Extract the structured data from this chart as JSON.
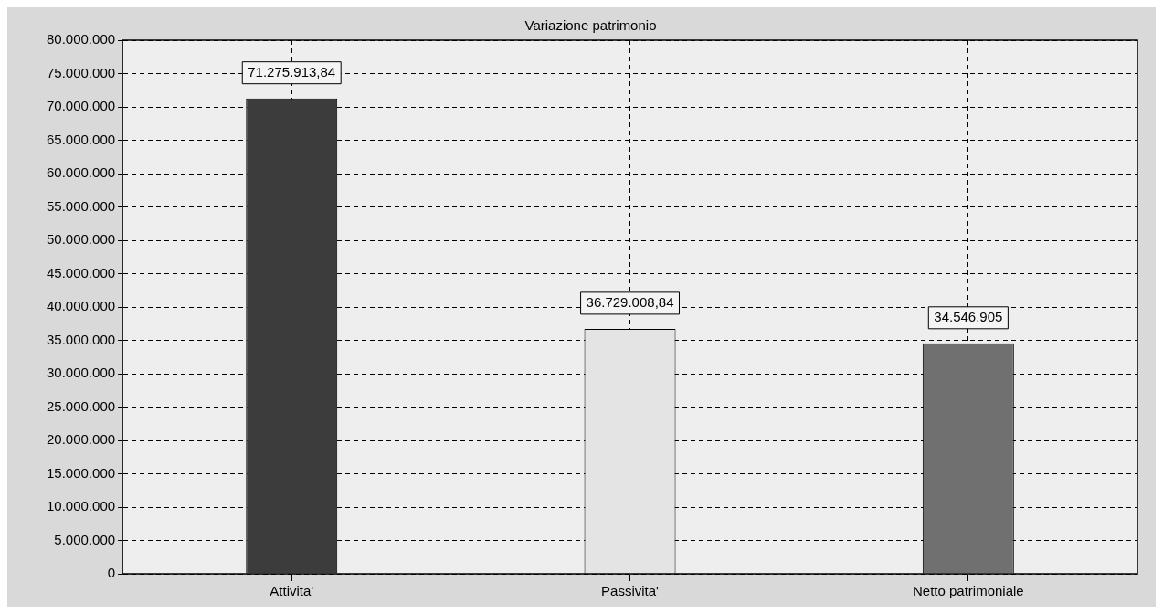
{
  "chart_data": {
    "type": "bar",
    "title": "Variazione patrimonio",
    "categories": [
      "Attivita'",
      "Passivita'",
      "Netto patrimoniale"
    ],
    "values": [
      71275913.84,
      36729008.84,
      34546905
    ],
    "colors": [
      "#3c3c3c",
      "#e4e4e4",
      "#707070"
    ],
    "value_labels": [
      "71.275.913,84",
      "36.729.008,84",
      "34.546.905"
    ],
    "ylim": [
      0,
      80000000
    ],
    "yticks": [
      {
        "value": 0,
        "label": "0"
      },
      {
        "value": 5000000,
        "label": "5.000.000"
      },
      {
        "value": 10000000,
        "label": "10.000.000"
      },
      {
        "value": 15000000,
        "label": "15.000.000"
      },
      {
        "value": 20000000,
        "label": "20.000.000"
      },
      {
        "value": 25000000,
        "label": "25.000.000"
      },
      {
        "value": 30000000,
        "label": "30.000.000"
      },
      {
        "value": 35000000,
        "label": "35.000.000"
      },
      {
        "value": 40000000,
        "label": "40.000.000"
      },
      {
        "value": 45000000,
        "label": "45.000.000"
      },
      {
        "value": 50000000,
        "label": "50.000.000"
      },
      {
        "value": 55000000,
        "label": "55.000.000"
      },
      {
        "value": 60000000,
        "label": "60.000.000"
      },
      {
        "value": 65000000,
        "label": "65.000.000"
      },
      {
        "value": 70000000,
        "label": "70.000.000"
      },
      {
        "value": 75000000,
        "label": "75.000.000"
      },
      {
        "value": 80000000,
        "label": "80.000.000"
      }
    ],
    "grid": true
  }
}
